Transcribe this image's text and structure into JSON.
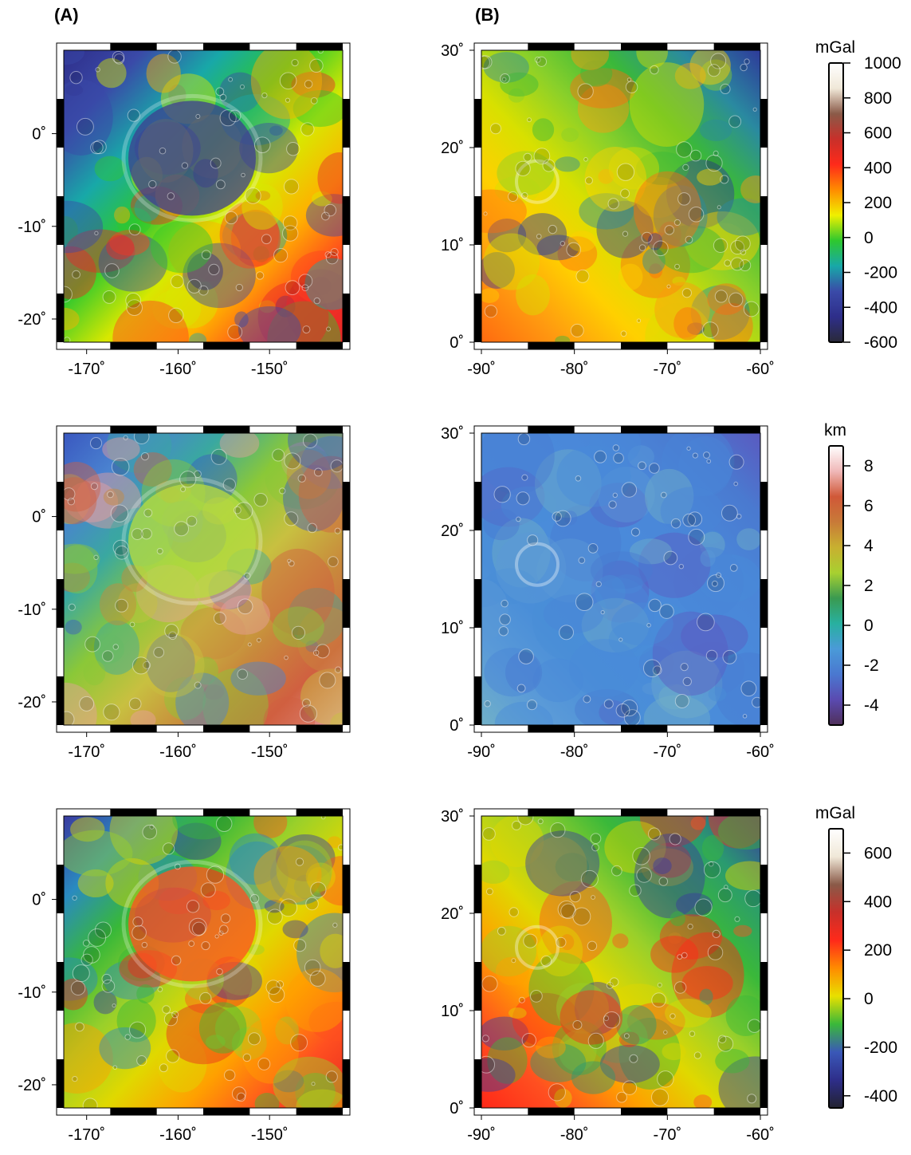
{
  "figure": {
    "panel_labels": [
      "(A)",
      "(B)"
    ],
    "columns": [
      {
        "id": "A",
        "lat_ticks": [
          0,
          -10,
          -20
        ],
        "lat_tick_labels": [
          "0˚",
          "-10˚",
          "-20˚"
        ],
        "lon_ticks": [
          -170,
          -160,
          -150
        ],
        "lon_tick_labels": [
          "-170˚",
          "-160˚",
          "-150˚"
        ],
        "lon_range": [
          -172.5,
          -142
        ],
        "lat_range": [
          -22.5,
          9
        ]
      },
      {
        "id": "B",
        "lat_ticks": [
          30,
          20,
          10,
          0
        ],
        "lat_tick_labels": [
          "30˚",
          "20˚",
          "10˚",
          "0˚"
        ],
        "lon_ticks": [
          -90,
          -80,
          -70,
          -60
        ],
        "lon_tick_labels": [
          "-90˚",
          "-80˚",
          "-70˚",
          "-60˚"
        ],
        "lon_range": [
          -90,
          -60
        ],
        "lat_range": [
          0,
          30
        ]
      }
    ],
    "rows": [
      {
        "colorbar": {
          "unit": "mGal",
          "min": -600,
          "max": 1000,
          "ticks": [
            1000,
            800,
            600,
            400,
            200,
            0,
            -200,
            -400,
            -600
          ],
          "tick_labels": [
            "1000",
            "800",
            "600",
            "400",
            "200",
            "0",
            "-200",
            "-400",
            "-600"
          ],
          "colors": [
            "#2a2a38",
            "#2e2e8a",
            "#3a4aa8",
            "#18a8a8",
            "#2ec82e",
            "#f0f000",
            "#ff8c00",
            "#ff2a1a",
            "#c8302a",
            "#8a5a48",
            "#f0e8d8",
            "#ffffff"
          ]
        }
      },
      {
        "colorbar": {
          "unit": "km",
          "min": -5,
          "max": 9,
          "ticks": [
            8,
            6,
            4,
            2,
            0,
            -2,
            -4
          ],
          "tick_labels": [
            "8",
            "6",
            "4",
            "2",
            "0",
            "-2",
            "-4"
          ],
          "colors": [
            "#50305a",
            "#5a4ab0",
            "#4a78d0",
            "#4a9ad8",
            "#28b0a0",
            "#3a9a50",
            "#a8d030",
            "#c8b030",
            "#c87a38",
            "#d05838",
            "#f0b8b8",
            "#ffffff"
          ]
        }
      },
      {
        "colorbar": {
          "unit": "mGal",
          "min": -450,
          "max": 700,
          "ticks": [
            600,
            400,
            200,
            0,
            -200,
            -400
          ],
          "tick_labels": [
            "600",
            "400",
            "200",
            "0",
            "-200",
            "-400"
          ],
          "colors": [
            "#222230",
            "#2e2e8a",
            "#3a58b8",
            "#3ab83a",
            "#e8e000",
            "#ff8c00",
            "#ff2a1a",
            "#c8302a",
            "#8a5a48",
            "#f0e8d8",
            "#ffffff"
          ]
        }
      }
    ]
  }
}
